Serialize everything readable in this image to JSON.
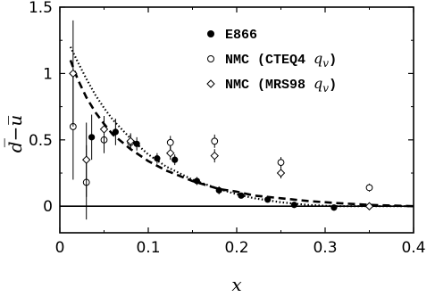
{
  "chart_data": {
    "type": "scatter",
    "title": "",
    "xlabel": "x",
    "ylabel": "d̅−u̅",
    "xlim": [
      0,
      0.4
    ],
    "ylim": [
      -0.2,
      1.5
    ],
    "x_ticks": [
      "0",
      "0.1",
      "0.2",
      "0.3",
      "0.4"
    ],
    "x_tick_values": [
      0,
      0.1,
      0.2,
      0.3,
      0.4
    ],
    "y_ticks": [
      "0",
      "0.5",
      "1",
      "1.5"
    ],
    "y_tick_values": [
      0,
      0.5,
      1,
      1.5
    ],
    "legend_position": "top-right",
    "zero_line": true,
    "series": [
      {
        "name": "E866",
        "marker": "filled-circle",
        "points": [
          {
            "x": 0.036,
            "y": 0.52,
            "err": 0.17
          },
          {
            "x": 0.063,
            "y": 0.56,
            "err": 0.1
          },
          {
            "x": 0.087,
            "y": 0.47,
            "err": 0.05
          },
          {
            "x": 0.11,
            "y": 0.36,
            "err": 0.04
          },
          {
            "x": 0.13,
            "y": 0.35,
            "err": 0.04
          },
          {
            "x": 0.155,
            "y": 0.19,
            "err": 0.03
          },
          {
            "x": 0.18,
            "y": 0.12,
            "err": 0.03
          },
          {
            "x": 0.205,
            "y": 0.08,
            "err": 0.02
          },
          {
            "x": 0.235,
            "y": 0.05,
            "err": 0.02
          },
          {
            "x": 0.265,
            "y": 0.01,
            "err": 0.02
          },
          {
            "x": 0.31,
            "y": -0.01,
            "err": 0.02
          }
        ]
      },
      {
        "name": "NMC (CTEQ4 q_v)",
        "marker": "open-circle",
        "points": [
          {
            "x": 0.015,
            "y": 0.6,
            "err": 0.4
          },
          {
            "x": 0.03,
            "y": 0.18,
            "err": 0.28
          },
          {
            "x": 0.05,
            "y": 0.5,
            "err": 0.1
          },
          {
            "x": 0.08,
            "y": 0.48,
            "err": 0.06
          },
          {
            "x": 0.125,
            "y": 0.48,
            "err": 0.05
          },
          {
            "x": 0.175,
            "y": 0.49,
            "err": 0.05
          },
          {
            "x": 0.25,
            "y": 0.33,
            "err": 0.04
          },
          {
            "x": 0.35,
            "y": 0.14,
            "err": 0.03
          }
        ]
      },
      {
        "name": "NMC (MRS98 q_v)",
        "marker": "open-diamond",
        "points": [
          {
            "x": 0.015,
            "y": 1.0,
            "err": 0.4
          },
          {
            "x": 0.03,
            "y": 0.35,
            "err": 0.28
          },
          {
            "x": 0.05,
            "y": 0.58,
            "err": 0.1
          },
          {
            "x": 0.08,
            "y": 0.49,
            "err": 0.06
          },
          {
            "x": 0.125,
            "y": 0.4,
            "err": 0.05
          },
          {
            "x": 0.175,
            "y": 0.38,
            "err": 0.05
          },
          {
            "x": 0.25,
            "y": 0.25,
            "err": 0.04
          },
          {
            "x": 0.35,
            "y": 0.0,
            "err": 0.02
          }
        ]
      }
    ],
    "curves": [
      {
        "style": "dashed",
        "points": [
          [
            0.012,
            1.1
          ],
          [
            0.02,
            0.96
          ],
          [
            0.03,
            0.82
          ],
          [
            0.04,
            0.71
          ],
          [
            0.05,
            0.62
          ],
          [
            0.06,
            0.54
          ],
          [
            0.08,
            0.43
          ],
          [
            0.1,
            0.34
          ],
          [
            0.12,
            0.27
          ],
          [
            0.15,
            0.19
          ],
          [
            0.18,
            0.13
          ],
          [
            0.2,
            0.11
          ],
          [
            0.22,
            0.08
          ],
          [
            0.25,
            0.06
          ],
          [
            0.28,
            0.04
          ],
          [
            0.31,
            0.025
          ],
          [
            0.35,
            0.01
          ],
          [
            0.4,
            0.0
          ]
        ]
      },
      {
        "style": "dotted",
        "points": [
          [
            0.012,
            1.2
          ],
          [
            0.02,
            1.09
          ],
          [
            0.03,
            0.96
          ],
          [
            0.04,
            0.84
          ],
          [
            0.05,
            0.74
          ],
          [
            0.06,
            0.65
          ],
          [
            0.08,
            0.51
          ],
          [
            0.1,
            0.39
          ],
          [
            0.12,
            0.3
          ],
          [
            0.15,
            0.2
          ],
          [
            0.18,
            0.13
          ],
          [
            0.2,
            0.09
          ],
          [
            0.22,
            0.06
          ],
          [
            0.25,
            0.03
          ],
          [
            0.28,
            0.01
          ],
          [
            0.31,
            0.0
          ],
          [
            0.35,
            0.0
          ],
          [
            0.4,
            0.0
          ]
        ]
      }
    ]
  }
}
